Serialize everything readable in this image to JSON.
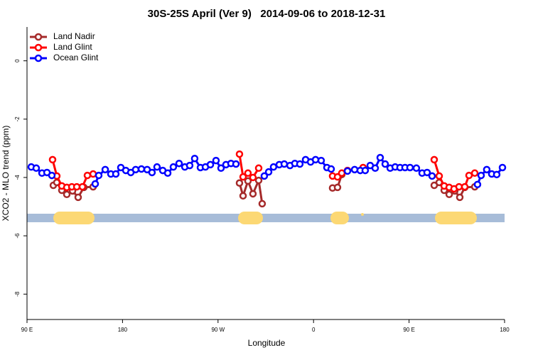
{
  "chart_data": {
    "type": "line",
    "title": "30S-25S April (Ver 9)   2014-09-06 to 2018-12-31",
    "x_label": "Longitude",
    "y_label": "XCO2 - MLO trend (ppm)",
    "xlim": [
      90,
      540
    ],
    "xticks": [
      {
        "value": 90,
        "label": "90 E"
      },
      180,
      {
        "value": 270,
        "label": "90 W"
      },
      {
        "value": 360,
        "label": "0"
      },
      {
        "value": 450,
        "label": "90 E"
      },
      {
        "value": 540,
        "label": "180"
      }
    ],
    "ylim": [
      -8.87,
      1.16
    ],
    "yticks": [
      0,
      -2,
      -4,
      -6,
      -8
    ],
    "legend": "top-left",
    "series": [
      {
        "name": "Land Nadir",
        "color": "#a52a2a",
        "x": [
          114.8,
          118.1,
          122.8,
          127.5,
          132.9,
          138.2,
          143.6,
          152.3,
          230,
          290.2,
          293.6,
          298.2,
          302.9,
          308.3,
          311.6,
          340,
          377.9,
          382.6,
          386.6,
          450,
          473.7,
          478.4,
          483.1,
          487.8,
          493.1,
          497.8,
          502.5,
          511.9
        ],
        "values": [
          -4.27,
          -4.17,
          -4.44,
          -4.58,
          -4.46,
          -4.68,
          -4.34,
          -4.32,
          null,
          -4.19,
          -4.63,
          -4.12,
          -4.56,
          -4.1,
          -4.9,
          null,
          -4.36,
          -4.34,
          -3.9,
          null,
          -4.27,
          -4.17,
          -4.44,
          -4.58,
          -4.46,
          -4.68,
          -4.34,
          -4.32
        ]
      },
      {
        "name": "Land Glint",
        "color": "#ff0000",
        "x": [
          114.1,
          118.1,
          122.8,
          127.5,
          132.2,
          136.9,
          142.2,
          146.9,
          152.3,
          230,
          290.2,
          293.6,
          298.2,
          302.9,
          308.3,
          340,
          377.9,
          382.6,
          386.6,
          392.0,
          400,
          406.7,
          450,
          473.7,
          478.4,
          483.1,
          487.8,
          492.4,
          497.1,
          502.5,
          506.5,
          511.9
        ],
        "values": [
          -3.39,
          -3.95,
          -4.29,
          -4.34,
          -4.32,
          -4.32,
          -4.32,
          -3.93,
          -3.88,
          null,
          -3.2,
          -3.98,
          -3.85,
          -4.0,
          -3.68,
          null,
          -3.95,
          -3.98,
          -3.85,
          -3.76,
          null,
          -3.66,
          null,
          -3.39,
          -3.95,
          -4.29,
          -4.34,
          -4.39,
          -4.32,
          -4.32,
          -3.93,
          -3.85
        ]
      },
      {
        "name": "Ocean Glint",
        "color": "#0000ff",
        "x": [
          94.0,
          98.7,
          104.1,
          108.8,
          113.4,
          130,
          154.3,
          157.6,
          163.7,
          169.0,
          173.7,
          178.4,
          183.1,
          187.8,
          192.4,
          197.8,
          203.2,
          207.8,
          212.5,
          217.9,
          222.6,
          227.9,
          233.3,
          238.7,
          243.3,
          248.0,
          253.4,
          258.1,
          262.8,
          268.1,
          272.8,
          277.5,
          282.2,
          286.9,
          300,
          313.6,
          317.7,
          322.3,
          327.7,
          332.4,
          337.8,
          342.4,
          347.1,
          352.5,
          357.2,
          361.9,
          367.2,
          372.6,
          376.6,
          385,
          392.0,
          398.7,
          404.0,
          408.7,
          413.4,
          418.1,
          422.8,
          427.5,
          432.2,
          436.9,
          441.5,
          446.2,
          450.9,
          456.9,
          462.3,
          467.0,
          471.7,
          490,
          514.5,
          517.9,
          523.2,
          527.9,
          532.6,
          538.0
        ],
        "values": [
          -3.64,
          -3.68,
          -3.85,
          -3.83,
          -3.93,
          null,
          -4.22,
          -3.93,
          -3.73,
          -3.88,
          -3.88,
          -3.66,
          -3.76,
          -3.83,
          -3.73,
          -3.71,
          -3.73,
          -3.83,
          -3.64,
          -3.76,
          -3.85,
          -3.64,
          -3.52,
          -3.64,
          -3.59,
          -3.35,
          -3.66,
          -3.64,
          -3.56,
          -3.42,
          -3.68,
          -3.56,
          -3.52,
          -3.54,
          null,
          -3.95,
          -3.81,
          -3.64,
          -3.56,
          -3.54,
          -3.59,
          -3.52,
          -3.54,
          -3.39,
          -3.47,
          -3.39,
          -3.42,
          -3.66,
          -3.71,
          null,
          -3.78,
          -3.73,
          -3.76,
          -3.76,
          -3.59,
          -3.68,
          -3.32,
          -3.54,
          -3.68,
          -3.64,
          -3.66,
          -3.66,
          -3.66,
          -3.68,
          -3.85,
          -3.83,
          -3.95,
          null,
          -4.24,
          -3.93,
          -3.73,
          -3.88,
          -3.9,
          -3.66
        ]
      }
    ]
  }
}
